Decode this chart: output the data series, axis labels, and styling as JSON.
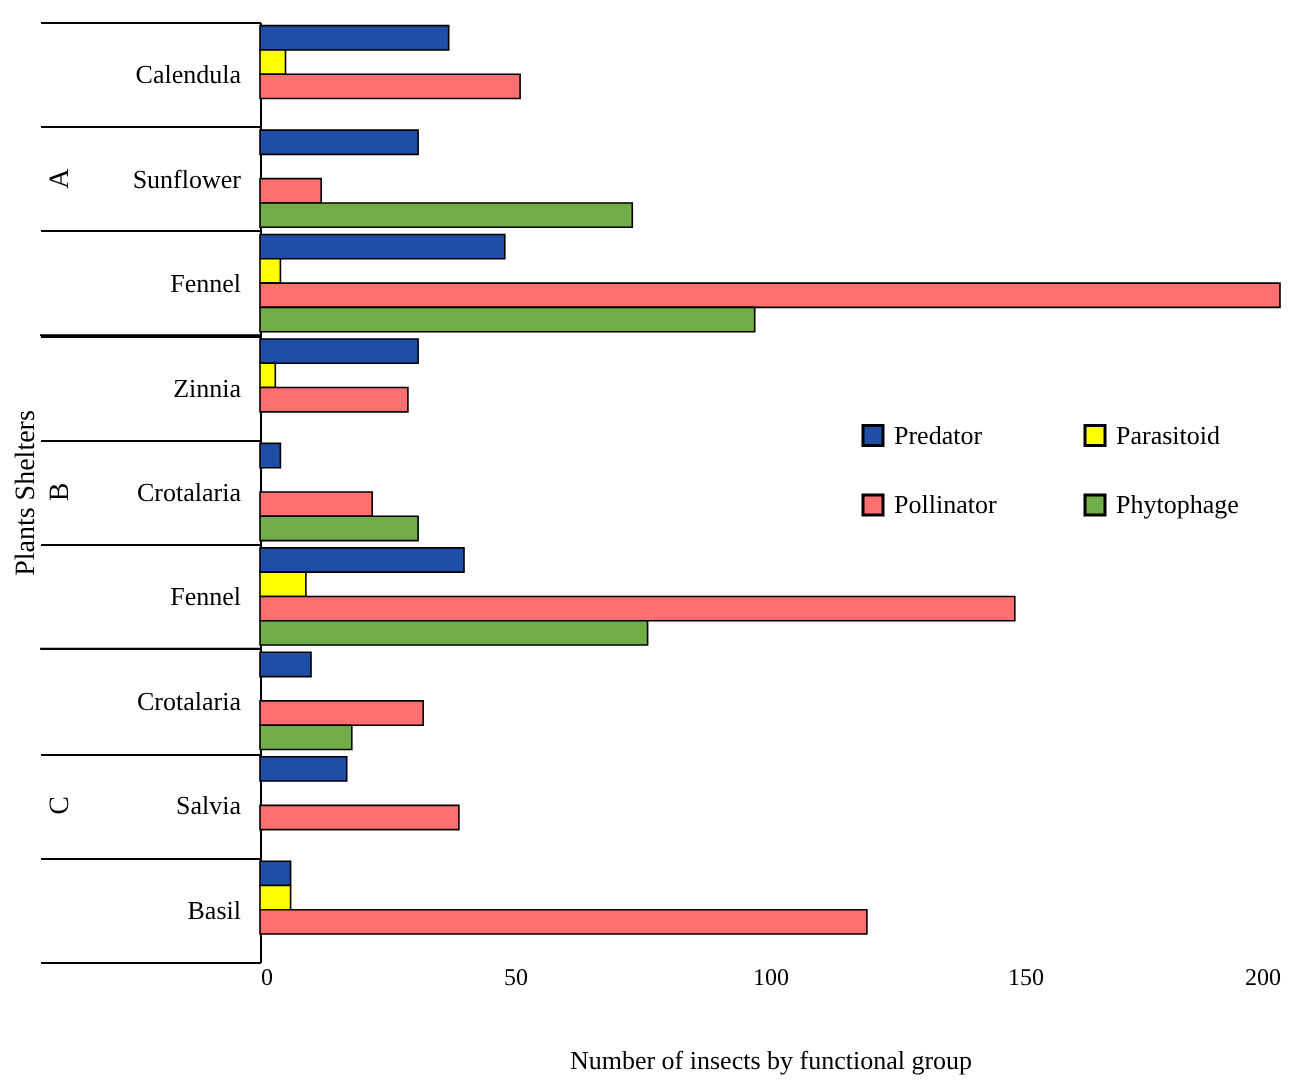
{
  "chart_data": {
    "type": "bar",
    "orientation": "horizontal",
    "xlabel": "Number of insects by functional group",
    "ylabel": "Plants Shelters",
    "categories": [
      "Calendula",
      "Sunflower",
      "Fennel",
      "Zinnia",
      "Crotalaria",
      "Fennel",
      "Crotalaria",
      "Salvia",
      "Basil"
    ],
    "series": [
      {
        "name": "Predator",
        "color": "#1f4ea6",
        "values": [
          37,
          31,
          48,
          31,
          4,
          40,
          10,
          17,
          6
        ]
      },
      {
        "name": "Parasitoid",
        "color": "#ffff00",
        "values": [
          5,
          null,
          4,
          3,
          null,
          9,
          null,
          null,
          6
        ]
      },
      {
        "name": "Pollinator",
        "color": "#ff6f6f",
        "values": [
          51,
          12,
          200,
          29,
          22,
          148,
          32,
          39,
          119
        ]
      },
      {
        "name": "Phytophage",
        "color": "#70ad47",
        "values": [
          null,
          73,
          97,
          null,
          31,
          76,
          18,
          null,
          null
        ]
      }
    ],
    "annotations": [
      "A",
      "B",
      "C"
    ],
    "xlim": [
      0,
      200
    ],
    "xticks": [
      0,
      50,
      100,
      150,
      200
    ],
    "grid": false,
    "legend": "right"
  }
}
